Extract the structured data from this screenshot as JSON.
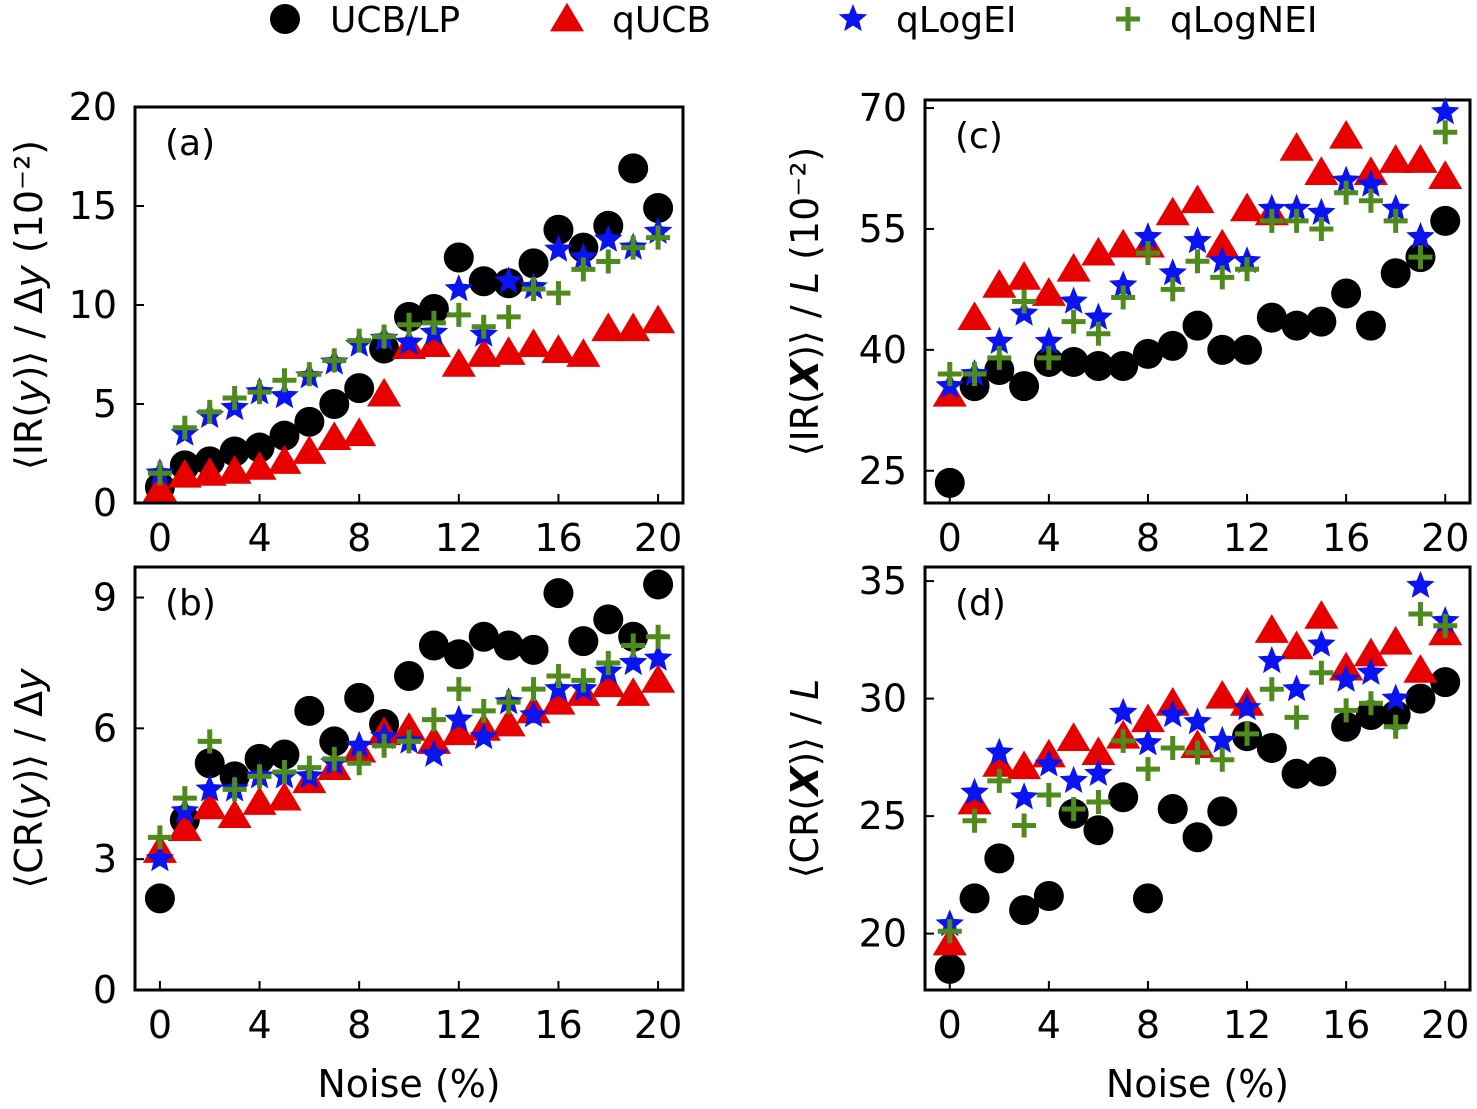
{
  "colors": {
    "ucb_lp": "#000000",
    "qucb": "#e60000",
    "qlogei": "#0a14f0",
    "qlognei": "#4f8a1c"
  },
  "legend": [
    {
      "key": "ucb_lp",
      "label": "UCB/LP",
      "marker": "circle"
    },
    {
      "key": "qucb",
      "label": "qUCB",
      "marker": "triangle"
    },
    {
      "key": "qlogei",
      "label": "qLogEI",
      "marker": "star"
    },
    {
      "key": "qlognei",
      "label": "qLogNEI",
      "marker": "plus"
    }
  ],
  "chart_data": [
    {
      "type": "scatter",
      "panel": "(a)",
      "ylabel": "⟨IR(y)⟩ / Δy (10⁻²)",
      "ylabel_parts": {
        "pre": "⟨IR(",
        "var": "y",
        "post": ")⟩ / Δ",
        "var2": "y",
        "unit": "(10⁻²)"
      },
      "xlabel": "",
      "xlim": [
        -1,
        21
      ],
      "ylim": [
        0,
        20
      ],
      "xticks": [
        "0",
        "4",
        "8",
        "12",
        "16",
        "20"
      ],
      "yticks": [
        "0",
        "5",
        "10",
        "15",
        "20"
      ],
      "x": [
        0,
        1,
        2,
        3,
        4,
        5,
        6,
        7,
        8,
        9,
        10,
        11,
        12,
        13,
        14,
        15,
        16,
        17,
        18,
        19,
        20
      ],
      "series": [
        {
          "key": "ucb_lp",
          "name": "UCB/LP",
          "values": [
            0.8,
            1.9,
            2.1,
            2.6,
            2.8,
            3.4,
            4.1,
            5.0,
            5.8,
            7.8,
            9.4,
            9.8,
            12.4,
            11.2,
            11.1,
            12.1,
            13.8,
            12.9,
            14.0,
            16.9,
            14.9
          ]
        },
        {
          "key": "qucb",
          "name": "qUCB",
          "values": [
            0.7,
            1.4,
            1.5,
            1.6,
            1.8,
            2.1,
            2.6,
            3.3,
            3.5,
            5.5,
            7.9,
            8.0,
            7.0,
            7.5,
            7.6,
            8.0,
            7.7,
            7.5,
            8.8,
            8.8,
            9.2
          ]
        },
        {
          "key": "qlogei",
          "name": "qLogEI",
          "values": [
            1.5,
            3.5,
            4.4,
            4.8,
            5.6,
            5.4,
            6.4,
            7.1,
            8.0,
            8.3,
            8.1,
            8.6,
            10.8,
            8.5,
            11.2,
            10.9,
            12.8,
            12.4,
            13.3,
            12.9,
            13.7
          ]
        },
        {
          "key": "qlognei",
          "name": "qLogNEI",
          "values": [
            1.5,
            3.8,
            4.6,
            5.3,
            5.6,
            6.2,
            6.5,
            7.2,
            8.2,
            8.4,
            9.0,
            9.1,
            9.5,
            8.9,
            9.4,
            10.8,
            10.6,
            11.8,
            12.2,
            12.9,
            13.4
          ]
        }
      ]
    },
    {
      "type": "scatter",
      "panel": "(b)",
      "ylabel": "⟨CR(y)⟩ / Δy",
      "ylabel_parts": {
        "pre": "⟨CR(",
        "var": "y",
        "post": ")⟩ / Δ",
        "var2": "y",
        "unit": ""
      },
      "xlabel": "Noise (%)",
      "xlim": [
        -1,
        21
      ],
      "ylim": [
        0,
        9.7
      ],
      "xticks": [
        "0",
        "4",
        "8",
        "12",
        "16",
        "20"
      ],
      "yticks": [
        "0",
        "3",
        "6",
        "9"
      ],
      "x": [
        0,
        1,
        2,
        3,
        4,
        5,
        6,
        7,
        8,
        9,
        10,
        11,
        12,
        13,
        14,
        15,
        16,
        17,
        18,
        19,
        20
      ],
      "series": [
        {
          "key": "ucb_lp",
          "name": "UCB/LP",
          "values": [
            2.1,
            3.9,
            5.2,
            4.9,
            5.3,
            5.4,
            6.4,
            5.7,
            6.7,
            6.1,
            7.2,
            7.9,
            7.7,
            8.1,
            7.9,
            7.8,
            9.1,
            8.0,
            8.5,
            8.1,
            9.3
          ]
        },
        {
          "key": "qucb",
          "name": "qUCB",
          "values": [
            3.2,
            3.7,
            4.2,
            4.0,
            4.3,
            4.4,
            4.8,
            5.1,
            5.5,
            5.9,
            6.0,
            5.7,
            5.9,
            6.0,
            6.1,
            6.4,
            6.6,
            6.8,
            7.0,
            6.8,
            7.1
          ]
        },
        {
          "key": "qlogei",
          "name": "qLogEI",
          "values": [
            3.0,
            4.1,
            4.6,
            4.6,
            4.9,
            4.9,
            4.9,
            5.2,
            5.6,
            5.8,
            5.7,
            5.4,
            6.2,
            5.8,
            6.6,
            6.3,
            6.9,
            6.9,
            7.3,
            7.5,
            7.6
          ]
        },
        {
          "key": "qlognei",
          "name": "qLogNEI",
          "values": [
            3.5,
            4.4,
            5.7,
            4.6,
            4.9,
            5.0,
            5.1,
            5.3,
            5.2,
            5.6,
            5.7,
            6.2,
            6.9,
            6.4,
            6.6,
            6.9,
            7.2,
            7.1,
            7.5,
            7.9,
            8.1
          ]
        }
      ]
    },
    {
      "type": "scatter",
      "panel": "(c)",
      "ylabel": "⟨IR(X)⟩ / L (10⁻²)",
      "ylabel_parts": {
        "pre": "⟨IR(",
        "var": "X",
        "post": ")⟩ / ",
        "var2": "L",
        "unit": "(10⁻²)"
      },
      "xlabel": "",
      "xlim": [
        -1,
        21
      ],
      "ylim": [
        21,
        71
      ],
      "xticks": [
        "0",
        "4",
        "8",
        "12",
        "16",
        "20"
      ],
      "yticks": [
        "25",
        "40",
        "55",
        "70"
      ],
      "x": [
        0,
        1,
        2,
        3,
        4,
        5,
        6,
        7,
        8,
        9,
        10,
        11,
        12,
        13,
        14,
        15,
        16,
        17,
        18,
        19,
        20
      ],
      "series": [
        {
          "key": "ucb_lp",
          "name": "UCB/LP",
          "values": [
            23.5,
            35.5,
            37.5,
            35.5,
            38.5,
            38.5,
            38.0,
            38.0,
            39.5,
            40.5,
            43.0,
            40.0,
            40.0,
            44.0,
            43.0,
            43.5,
            47.0,
            43.0,
            49.5,
            51.5,
            56.0
          ]
        },
        {
          "key": "qucb",
          "name": "qUCB",
          "values": [
            34.5,
            44.0,
            48.0,
            49.0,
            47.0,
            50.0,
            52.0,
            53.0,
            53.0,
            57.0,
            58.5,
            53.0,
            57.5,
            57.0,
            65.0,
            62.0,
            66.5,
            62.0,
            63.5,
            63.5,
            61.5
          ]
        },
        {
          "key": "qlogei",
          "name": "qLogEI",
          "values": [
            35.5,
            37.0,
            41.0,
            44.5,
            41.0,
            46.0,
            44.0,
            48.0,
            54.0,
            49.5,
            53.5,
            51.0,
            51.0,
            57.5,
            57.5,
            57.0,
            61.0,
            60.5,
            57.5,
            54.0,
            69.5
          ]
        },
        {
          "key": "qlognei",
          "name": "qLogNEI",
          "values": [
            37.0,
            37.0,
            39.0,
            46.0,
            39.0,
            43.5,
            42.0,
            46.5,
            52.0,
            47.5,
            51.0,
            49.0,
            50.0,
            56.0,
            56.0,
            55.0,
            59.5,
            58.5,
            56.0,
            51.5,
            67.0
          ]
        }
      ]
    },
    {
      "type": "scatter",
      "panel": "(d)",
      "ylabel": "⟨CR(X)⟩ / L",
      "ylabel_parts": {
        "pre": "⟨CR(",
        "var": "X",
        "post": ")⟩ / ",
        "var2": "L",
        "unit": ""
      },
      "xlabel": "Noise (%)",
      "xlim": [
        -1,
        21
      ],
      "ylim": [
        17.6,
        35.6
      ],
      "xticks": [
        "0",
        "4",
        "8",
        "12",
        "16",
        "20"
      ],
      "yticks": [
        "20",
        "25",
        "30",
        "35"
      ],
      "x": [
        0,
        1,
        2,
        3,
        4,
        5,
        6,
        7,
        8,
        9,
        10,
        11,
        12,
        13,
        14,
        15,
        16,
        17,
        18,
        19,
        20
      ],
      "series": [
        {
          "key": "ucb_lp",
          "name": "UCB/LP",
          "values": [
            18.5,
            21.5,
            23.2,
            21.0,
            21.6,
            25.1,
            24.4,
            25.8,
            21.5,
            25.3,
            24.1,
            25.2,
            28.4,
            27.9,
            26.8,
            26.9,
            28.8,
            29.3,
            29.3,
            30.0,
            30.7
          ]
        },
        {
          "key": "qucb",
          "name": "qUCB",
          "values": [
            19.6,
            25.6,
            27.2,
            27.1,
            27.6,
            28.3,
            27.7,
            28.4,
            29.1,
            29.8,
            28.0,
            30.1,
            29.8,
            32.9,
            32.2,
            33.5,
            31.3,
            31.9,
            32.4,
            31.2,
            32.8
          ]
        },
        {
          "key": "qlogei",
          "name": "qLogEI",
          "values": [
            20.4,
            26.0,
            27.7,
            25.8,
            27.2,
            26.5,
            26.8,
            29.4,
            28.1,
            29.3,
            29.0,
            28.2,
            29.6,
            31.6,
            30.4,
            32.3,
            30.8,
            31.1,
            30.0,
            34.8,
            33.3
          ]
        },
        {
          "key": "qlognei",
          "name": "qLogNEI",
          "values": [
            20.1,
            24.8,
            26.5,
            24.6,
            25.9,
            25.3,
            25.6,
            28.2,
            27.0,
            27.9,
            27.7,
            27.4,
            28.5,
            30.4,
            29.2,
            31.1,
            29.5,
            29.8,
            28.8,
            33.6,
            33.1
          ]
        }
      ]
    }
  ]
}
